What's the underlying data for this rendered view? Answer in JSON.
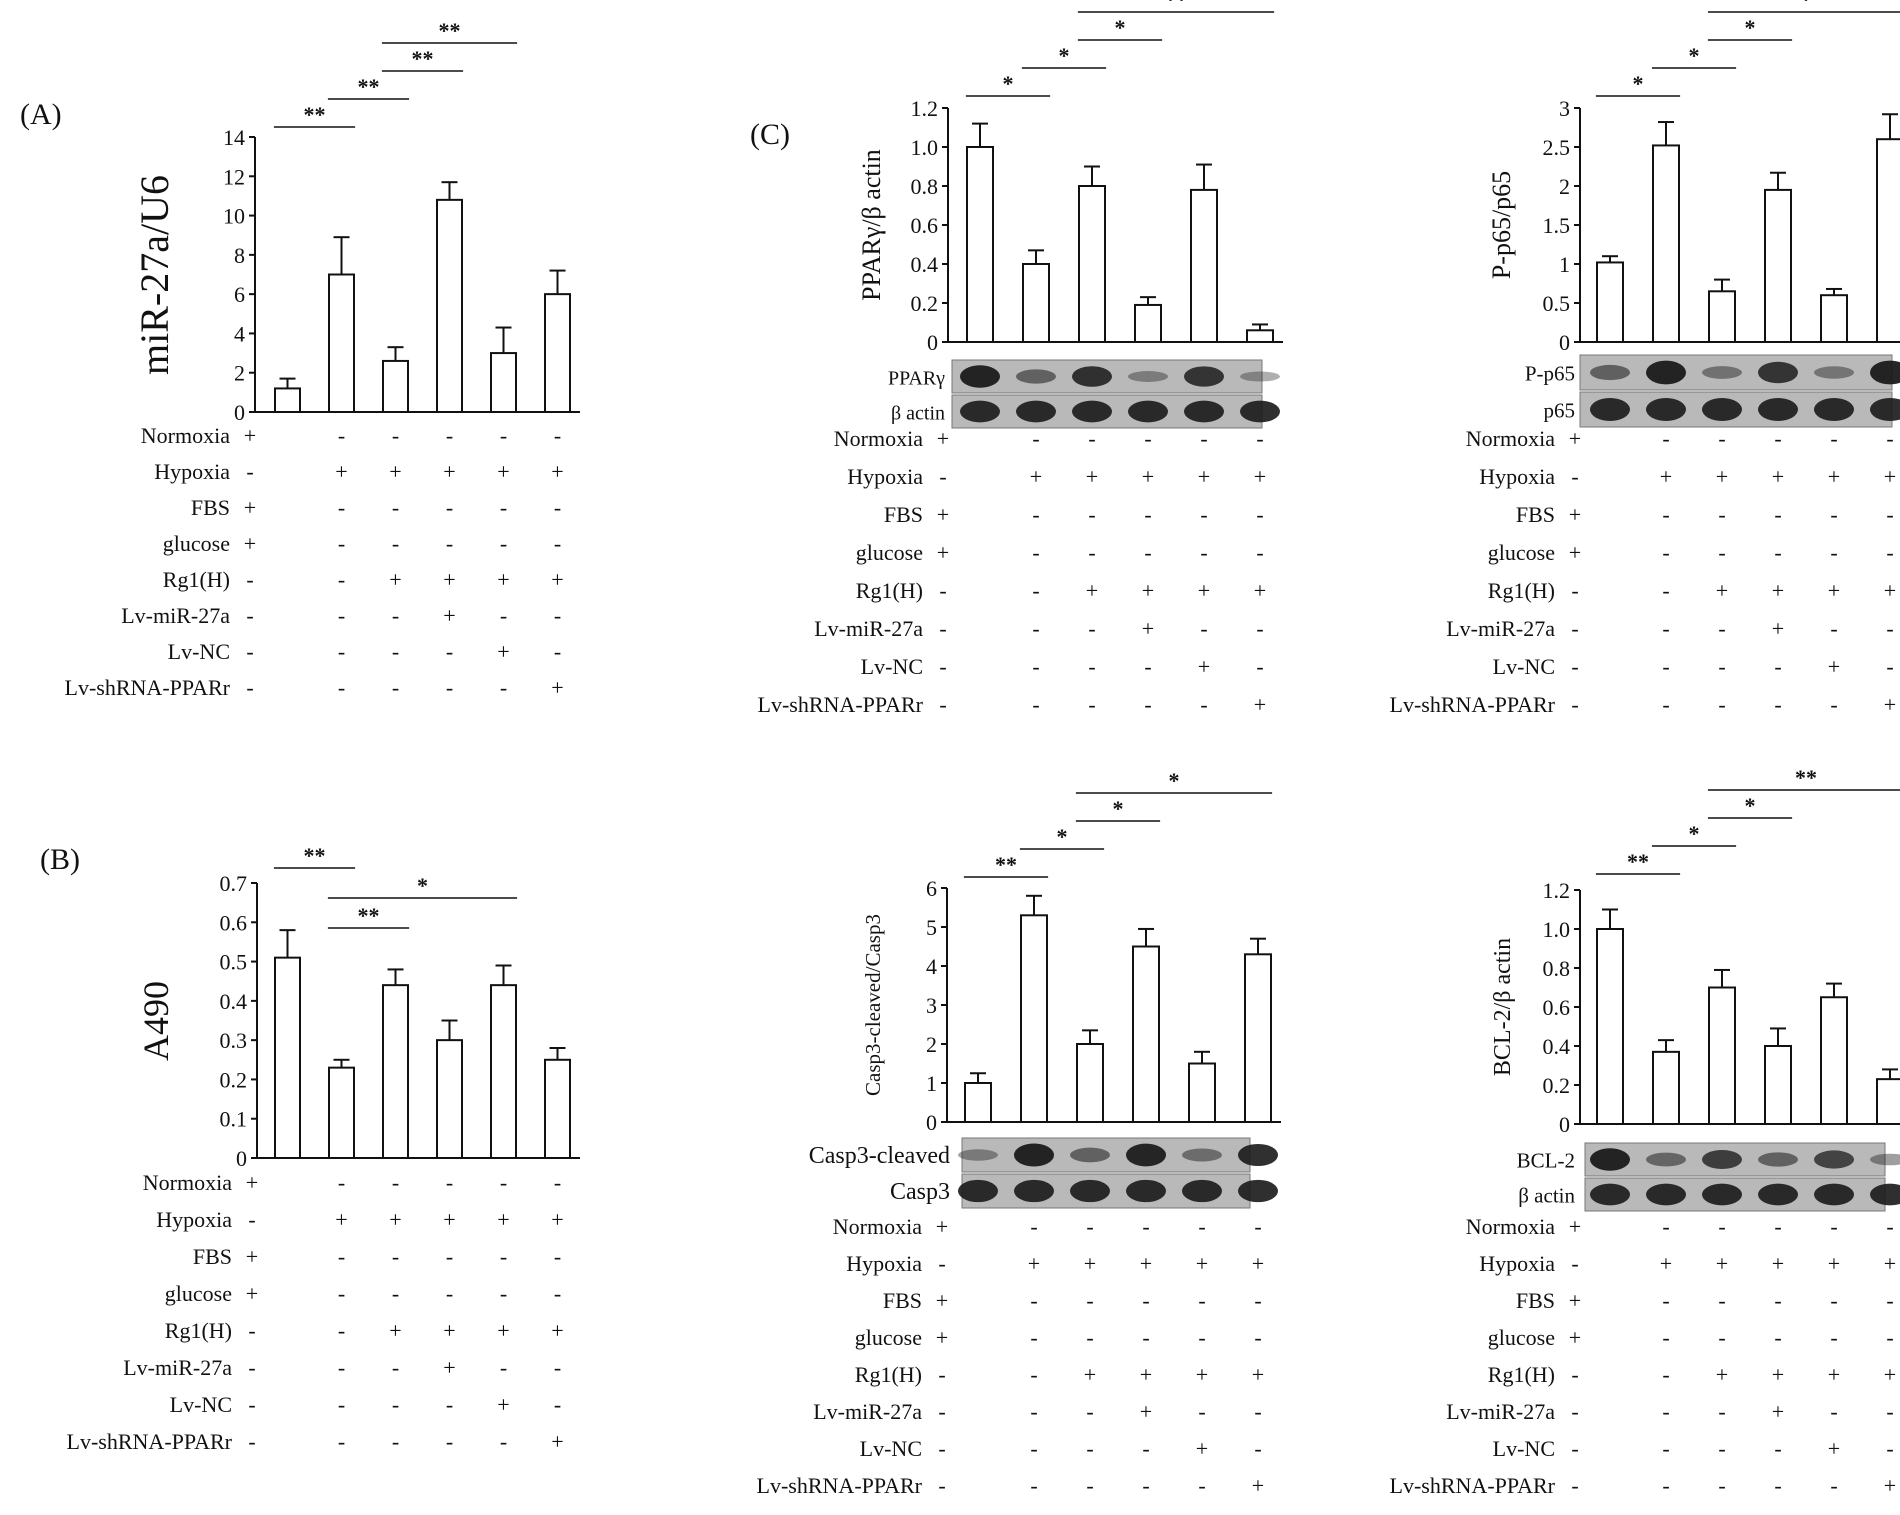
{
  "figure": {
    "rows": [
      "Normoxia",
      "Hypoxia",
      "FBS",
      "glucose",
      "Rg1(H)",
      "Lv-miR-27a",
      "Lv-NC",
      "Lv-shRNA-PPARr"
    ],
    "conditions": [
      [
        "+",
        "-",
        "-",
        "-",
        "-",
        "-"
      ],
      [
        "-",
        "+",
        "+",
        "+",
        "+",
        "+"
      ],
      [
        "+",
        "-",
        "-",
        "-",
        "-",
        "-"
      ],
      [
        "+",
        "-",
        "-",
        "-",
        "-",
        "-"
      ],
      [
        "-",
        "-",
        "+",
        "+",
        "+",
        "+"
      ],
      [
        "-",
        "-",
        "-",
        "+",
        "-",
        "-"
      ],
      [
        "-",
        "-",
        "-",
        "-",
        "+",
        "-"
      ],
      [
        "-",
        "-",
        "-",
        "-",
        "-",
        "+"
      ]
    ]
  },
  "chart_data": [
    {
      "id": "A",
      "panel_label": "(A)",
      "type": "bar",
      "ylabel": "miR-27a/U6",
      "ylim": [
        0,
        14
      ],
      "yticks": [
        "0",
        "2",
        "4",
        "6",
        "8",
        "10",
        "12",
        "14"
      ],
      "values": [
        1.2,
        7.0,
        2.6,
        10.8,
        3.0,
        6.0
      ],
      "errors": [
        0.5,
        1.9,
        0.7,
        0.9,
        1.3,
        1.2
      ],
      "significance": [
        {
          "from": 0,
          "to": 1,
          "label": "**",
          "level": 1
        },
        {
          "from": 1,
          "to": 2,
          "label": "**",
          "level": 2
        },
        {
          "from": 2,
          "to": 3,
          "label": "**",
          "level": 3
        },
        {
          "from": 2,
          "to": 4,
          "label": "**",
          "level": 4
        }
      ],
      "blots": []
    },
    {
      "id": "B",
      "panel_label": "(B)",
      "type": "bar",
      "ylabel": "A490",
      "ylim": [
        0,
        0.7
      ],
      "yticks": [
        "0",
        "0.1",
        "0.2",
        "0.3",
        "0.4",
        "0.5",
        "0.6",
        "0.7"
      ],
      "values": [
        0.51,
        0.23,
        0.44,
        0.3,
        0.44,
        0.25
      ],
      "errors": [
        0.07,
        0.02,
        0.04,
        0.05,
        0.05,
        0.03
      ],
      "significance": [
        {
          "from": 0,
          "to": 1,
          "label": "**",
          "level": 3
        },
        {
          "from": 1,
          "to": 2,
          "label": "**",
          "level": 1
        },
        {
          "from": 1,
          "to": 4,
          "label": "*",
          "level": 2
        }
      ],
      "blots": []
    },
    {
      "id": "C1",
      "panel_label": "(C)",
      "type": "bar",
      "ylabel": "PPARγ/β actin",
      "ylim": [
        0,
        1.2
      ],
      "yticks": [
        "0",
        "0.2",
        "0.4",
        "0.6",
        "0.8",
        "1.0",
        "1.2"
      ],
      "values": [
        1.0,
        0.4,
        0.8,
        0.19,
        0.78,
        0.06
      ],
      "errors": [
        0.12,
        0.07,
        0.1,
        0.04,
        0.13,
        0.03
      ],
      "significance": [
        {
          "from": 0,
          "to": 1,
          "label": "*",
          "level": 1
        },
        {
          "from": 1,
          "to": 2,
          "label": "*",
          "level": 2
        },
        {
          "from": 2,
          "to": 3,
          "label": "*",
          "level": 3
        },
        {
          "from": 2,
          "to": 5,
          "label": "**",
          "level": 4
        }
      ],
      "blots": [
        "PPARγ",
        "β actin"
      ]
    },
    {
      "id": "C2",
      "panel_label": "",
      "type": "bar",
      "ylabel": "P-p65/p65",
      "ylim": [
        0,
        3
      ],
      "yticks": [
        "0",
        "0.5",
        "1",
        "1.5",
        "2",
        "2.5",
        "3"
      ],
      "values": [
        1.02,
        2.52,
        0.65,
        1.95,
        0.6,
        2.6
      ],
      "errors": [
        0.08,
        0.3,
        0.15,
        0.22,
        0.08,
        0.32
      ],
      "significance": [
        {
          "from": 0,
          "to": 1,
          "label": "*",
          "level": 1
        },
        {
          "from": 1,
          "to": 2,
          "label": "*",
          "level": 2
        },
        {
          "from": 2,
          "to": 3,
          "label": "*",
          "level": 3
        },
        {
          "from": 2,
          "to": 5,
          "label": "*",
          "level": 4
        }
      ],
      "blots": [
        "P-p65",
        "p65"
      ]
    },
    {
      "id": "C3",
      "panel_label": "",
      "type": "bar",
      "ylabel": "Casp3-cleaved/Casp3",
      "ylim": [
        0,
        6
      ],
      "yticks": [
        "0",
        "1",
        "2",
        "3",
        "4",
        "5",
        "6"
      ],
      "values": [
        1.0,
        5.3,
        2.0,
        4.5,
        1.5,
        4.3
      ],
      "errors": [
        0.25,
        0.5,
        0.35,
        0.45,
        0.3,
        0.4
      ],
      "significance": [
        {
          "from": 0,
          "to": 1,
          "label": "**",
          "level": 1
        },
        {
          "from": 1,
          "to": 2,
          "label": "*",
          "level": 2
        },
        {
          "from": 2,
          "to": 3,
          "label": "*",
          "level": 3
        },
        {
          "from": 2,
          "to": 5,
          "label": "*",
          "level": 4
        }
      ],
      "blots": [
        "Casp3-cleaved",
        "Casp3"
      ]
    },
    {
      "id": "C4",
      "panel_label": "",
      "type": "bar",
      "ylabel": "BCL-2/β actin",
      "ylim": [
        0,
        1.2
      ],
      "yticks": [
        "0",
        "0.2",
        "0.4",
        "0.6",
        "0.8",
        "1.0",
        "1.2"
      ],
      "values": [
        1.0,
        0.37,
        0.7,
        0.4,
        0.65,
        0.23
      ],
      "errors": [
        0.1,
        0.06,
        0.09,
        0.09,
        0.07,
        0.05
      ],
      "significance": [
        {
          "from": 0,
          "to": 1,
          "label": "**",
          "level": 1
        },
        {
          "from": 1,
          "to": 2,
          "label": "*",
          "level": 2
        },
        {
          "from": 2,
          "to": 3,
          "label": "*",
          "level": 3
        },
        {
          "from": 2,
          "to": 5,
          "label": "**",
          "level": 4
        }
      ],
      "blots": [
        "BCL-2",
        "β actin"
      ]
    }
  ]
}
